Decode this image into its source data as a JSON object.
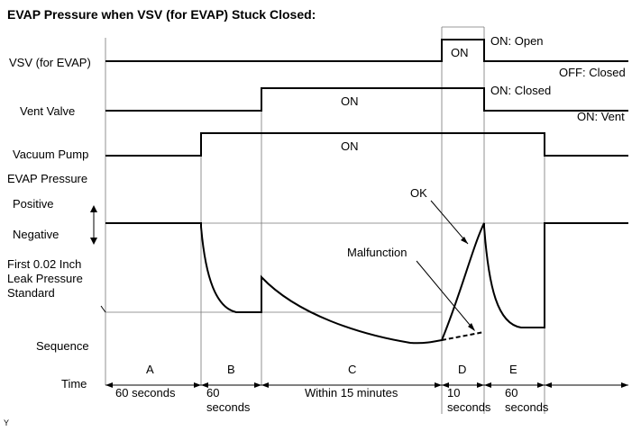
{
  "title": "EVAP Pressure when VSV (for EVAP) Stuck Closed:",
  "rows": {
    "vsv": "VSV (for EVAP)",
    "vent_valve": "Vent Valve",
    "vacuum_pump": "Vacuum Pump",
    "evap_pressure": "EVAP Pressure",
    "positive": "Positive",
    "negative": "Negative",
    "leak_line1": "First 0.02 Inch",
    "leak_line2": "Leak Pressure",
    "leak_line3": "Standard",
    "sequence": "Sequence",
    "time": "Time"
  },
  "states": {
    "vsv_on": "ON",
    "vsv_on_desc": "ON: Open",
    "vsv_off_desc": "OFF: Closed",
    "vent_on": "ON",
    "vent_on_desc": "ON: Closed",
    "vent_vent_desc": "ON: Vent",
    "pump_on": "ON"
  },
  "annotations": {
    "ok": "OK",
    "malfunction": "Malfunction"
  },
  "phases": [
    {
      "letter": "A",
      "time1": "60 seconds",
      "time2": ""
    },
    {
      "letter": "B",
      "time1": "60",
      "time2": "seconds"
    },
    {
      "letter": "C",
      "time1": "Within 15 minutes",
      "time2": ""
    },
    {
      "letter": "D",
      "time1": "10",
      "time2": "seconds"
    },
    {
      "letter": "E",
      "time1": "60",
      "time2": "seconds"
    }
  ],
  "footnote": "Y"
}
